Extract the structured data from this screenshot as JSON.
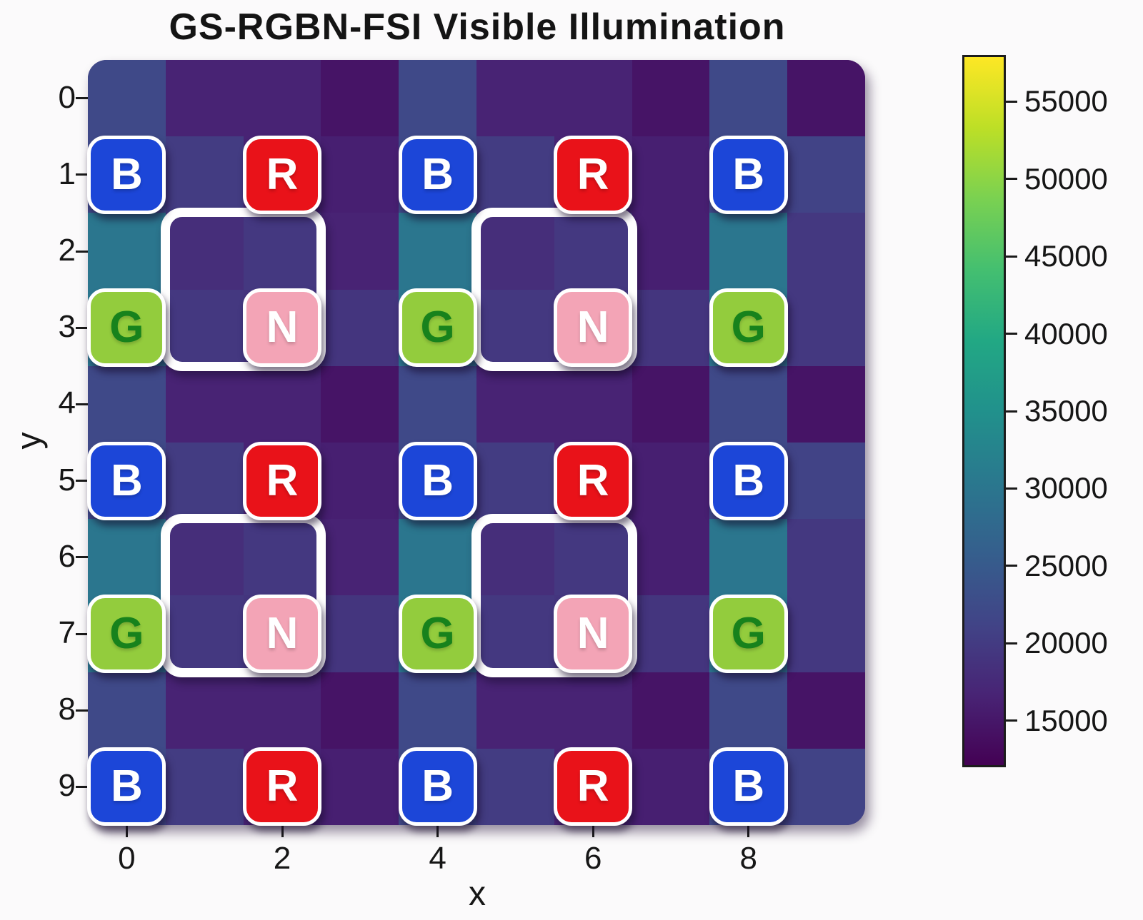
{
  "page": {
    "background": "#fbfafb"
  },
  "chart_data": {
    "type": "heatmap",
    "title": "GS-RGBN-FSI Visible Illumination",
    "xlabel": "x",
    "ylabel": "y",
    "x_tick_labels": [
      "0",
      "2",
      "4",
      "6",
      "8"
    ],
    "x_tick_cols": [
      0,
      2,
      4,
      6,
      8
    ],
    "y_tick_labels": [
      "0",
      "1",
      "2",
      "3",
      "4",
      "5",
      "6",
      "7",
      "8",
      "9"
    ],
    "grid": {
      "cols": 10,
      "rows": 10
    },
    "colormap": "viridis",
    "vmin": 12000,
    "vmax": 58000,
    "colormap_stops": [
      [
        0.0,
        "#440154"
      ],
      [
        0.1,
        "#482475"
      ],
      [
        0.2,
        "#414487"
      ],
      [
        0.3,
        "#355f8d"
      ],
      [
        0.4,
        "#2a788e"
      ],
      [
        0.5,
        "#21918c"
      ],
      [
        0.6,
        "#22a884"
      ],
      [
        0.7,
        "#44bf70"
      ],
      [
        0.8,
        "#7ad151"
      ],
      [
        0.9,
        "#bddf26"
      ],
      [
        1.0,
        "#fde725"
      ]
    ],
    "values": [
      [
        22000,
        16500,
        16500,
        14500,
        22000,
        16500,
        16500,
        14500,
        22000,
        14500
      ],
      [
        22000,
        20000,
        16500,
        16000,
        22000,
        20000,
        16500,
        16000,
        22000,
        21000
      ],
      [
        30000,
        18000,
        19500,
        16500,
        30000,
        18000,
        19500,
        16000,
        30000,
        19500
      ],
      [
        30000,
        19500,
        19000,
        19000,
        30000,
        19500,
        19000,
        19000,
        30000,
        19500
      ],
      [
        22000,
        16500,
        16500,
        14500,
        22000,
        16500,
        16500,
        14500,
        22000,
        14500
      ],
      [
        22000,
        20000,
        16500,
        16000,
        22000,
        20000,
        16500,
        16000,
        22000,
        21000
      ],
      [
        30000,
        18000,
        19500,
        16500,
        30000,
        18000,
        19500,
        16000,
        30000,
        19500
      ],
      [
        30000,
        19500,
        19000,
        19000,
        30000,
        19500,
        19000,
        19000,
        30000,
        19500
      ],
      [
        22000,
        16500,
        16500,
        14500,
        22000,
        16500,
        16500,
        14500,
        22000,
        14500
      ],
      [
        22000,
        20000,
        16500,
        16000,
        22000,
        20000,
        16500,
        16000,
        22000,
        21000
      ]
    ],
    "colorbar": {
      "tick_values": [
        55000,
        50000,
        45000,
        40000,
        35000,
        30000,
        25000,
        20000,
        15000
      ],
      "tick_labels": [
        "55000",
        "50000",
        "45000",
        "40000",
        "35000",
        "30000",
        "25000",
        "20000",
        "15000"
      ]
    },
    "badge_styles": {
      "B": {
        "fill": "#1c46d8",
        "text": "#ffffff"
      },
      "R": {
        "fill": "#e91219",
        "text": "#ffffff"
      },
      "G": {
        "fill": "#93cc3d",
        "text": "#17821c"
      },
      "N": {
        "fill": "#f3a4b6",
        "text": "#ffffff"
      }
    },
    "cfa_badges": [
      {
        "letter": "B",
        "col": 0,
        "row": 1
      },
      {
        "letter": "R",
        "col": 2,
        "row": 1
      },
      {
        "letter": "B",
        "col": 4,
        "row": 1
      },
      {
        "letter": "R",
        "col": 6,
        "row": 1
      },
      {
        "letter": "B",
        "col": 8,
        "row": 1
      },
      {
        "letter": "G",
        "col": 0,
        "row": 3
      },
      {
        "letter": "N",
        "col": 2,
        "row": 3
      },
      {
        "letter": "G",
        "col": 4,
        "row": 3
      },
      {
        "letter": "N",
        "col": 6,
        "row": 3
      },
      {
        "letter": "G",
        "col": 8,
        "row": 3
      },
      {
        "letter": "B",
        "col": 0,
        "row": 5
      },
      {
        "letter": "R",
        "col": 2,
        "row": 5
      },
      {
        "letter": "B",
        "col": 4,
        "row": 5
      },
      {
        "letter": "R",
        "col": 6,
        "row": 5
      },
      {
        "letter": "B",
        "col": 8,
        "row": 5
      },
      {
        "letter": "G",
        "col": 0,
        "row": 7
      },
      {
        "letter": "N",
        "col": 2,
        "row": 7
      },
      {
        "letter": "G",
        "col": 4,
        "row": 7
      },
      {
        "letter": "N",
        "col": 6,
        "row": 7
      },
      {
        "letter": "G",
        "col": 8,
        "row": 7
      },
      {
        "letter": "B",
        "col": 0,
        "row": 9
      },
      {
        "letter": "R",
        "col": 2,
        "row": 9
      },
      {
        "letter": "B",
        "col": 4,
        "row": 9
      },
      {
        "letter": "R",
        "col": 6,
        "row": 9
      },
      {
        "letter": "B",
        "col": 8,
        "row": 9
      }
    ],
    "unit_cell_outlines": [
      {
        "col": 1,
        "row": 2,
        "cols": 2,
        "rows": 2
      },
      {
        "col": 5,
        "row": 2,
        "cols": 2,
        "rows": 2
      },
      {
        "col": 1,
        "row": 6,
        "cols": 2,
        "rows": 2
      },
      {
        "col": 5,
        "row": 6,
        "cols": 2,
        "rows": 2
      }
    ],
    "outline_color": "#ffffff",
    "legend_position": "right-colorbar",
    "grid_lines": false
  }
}
